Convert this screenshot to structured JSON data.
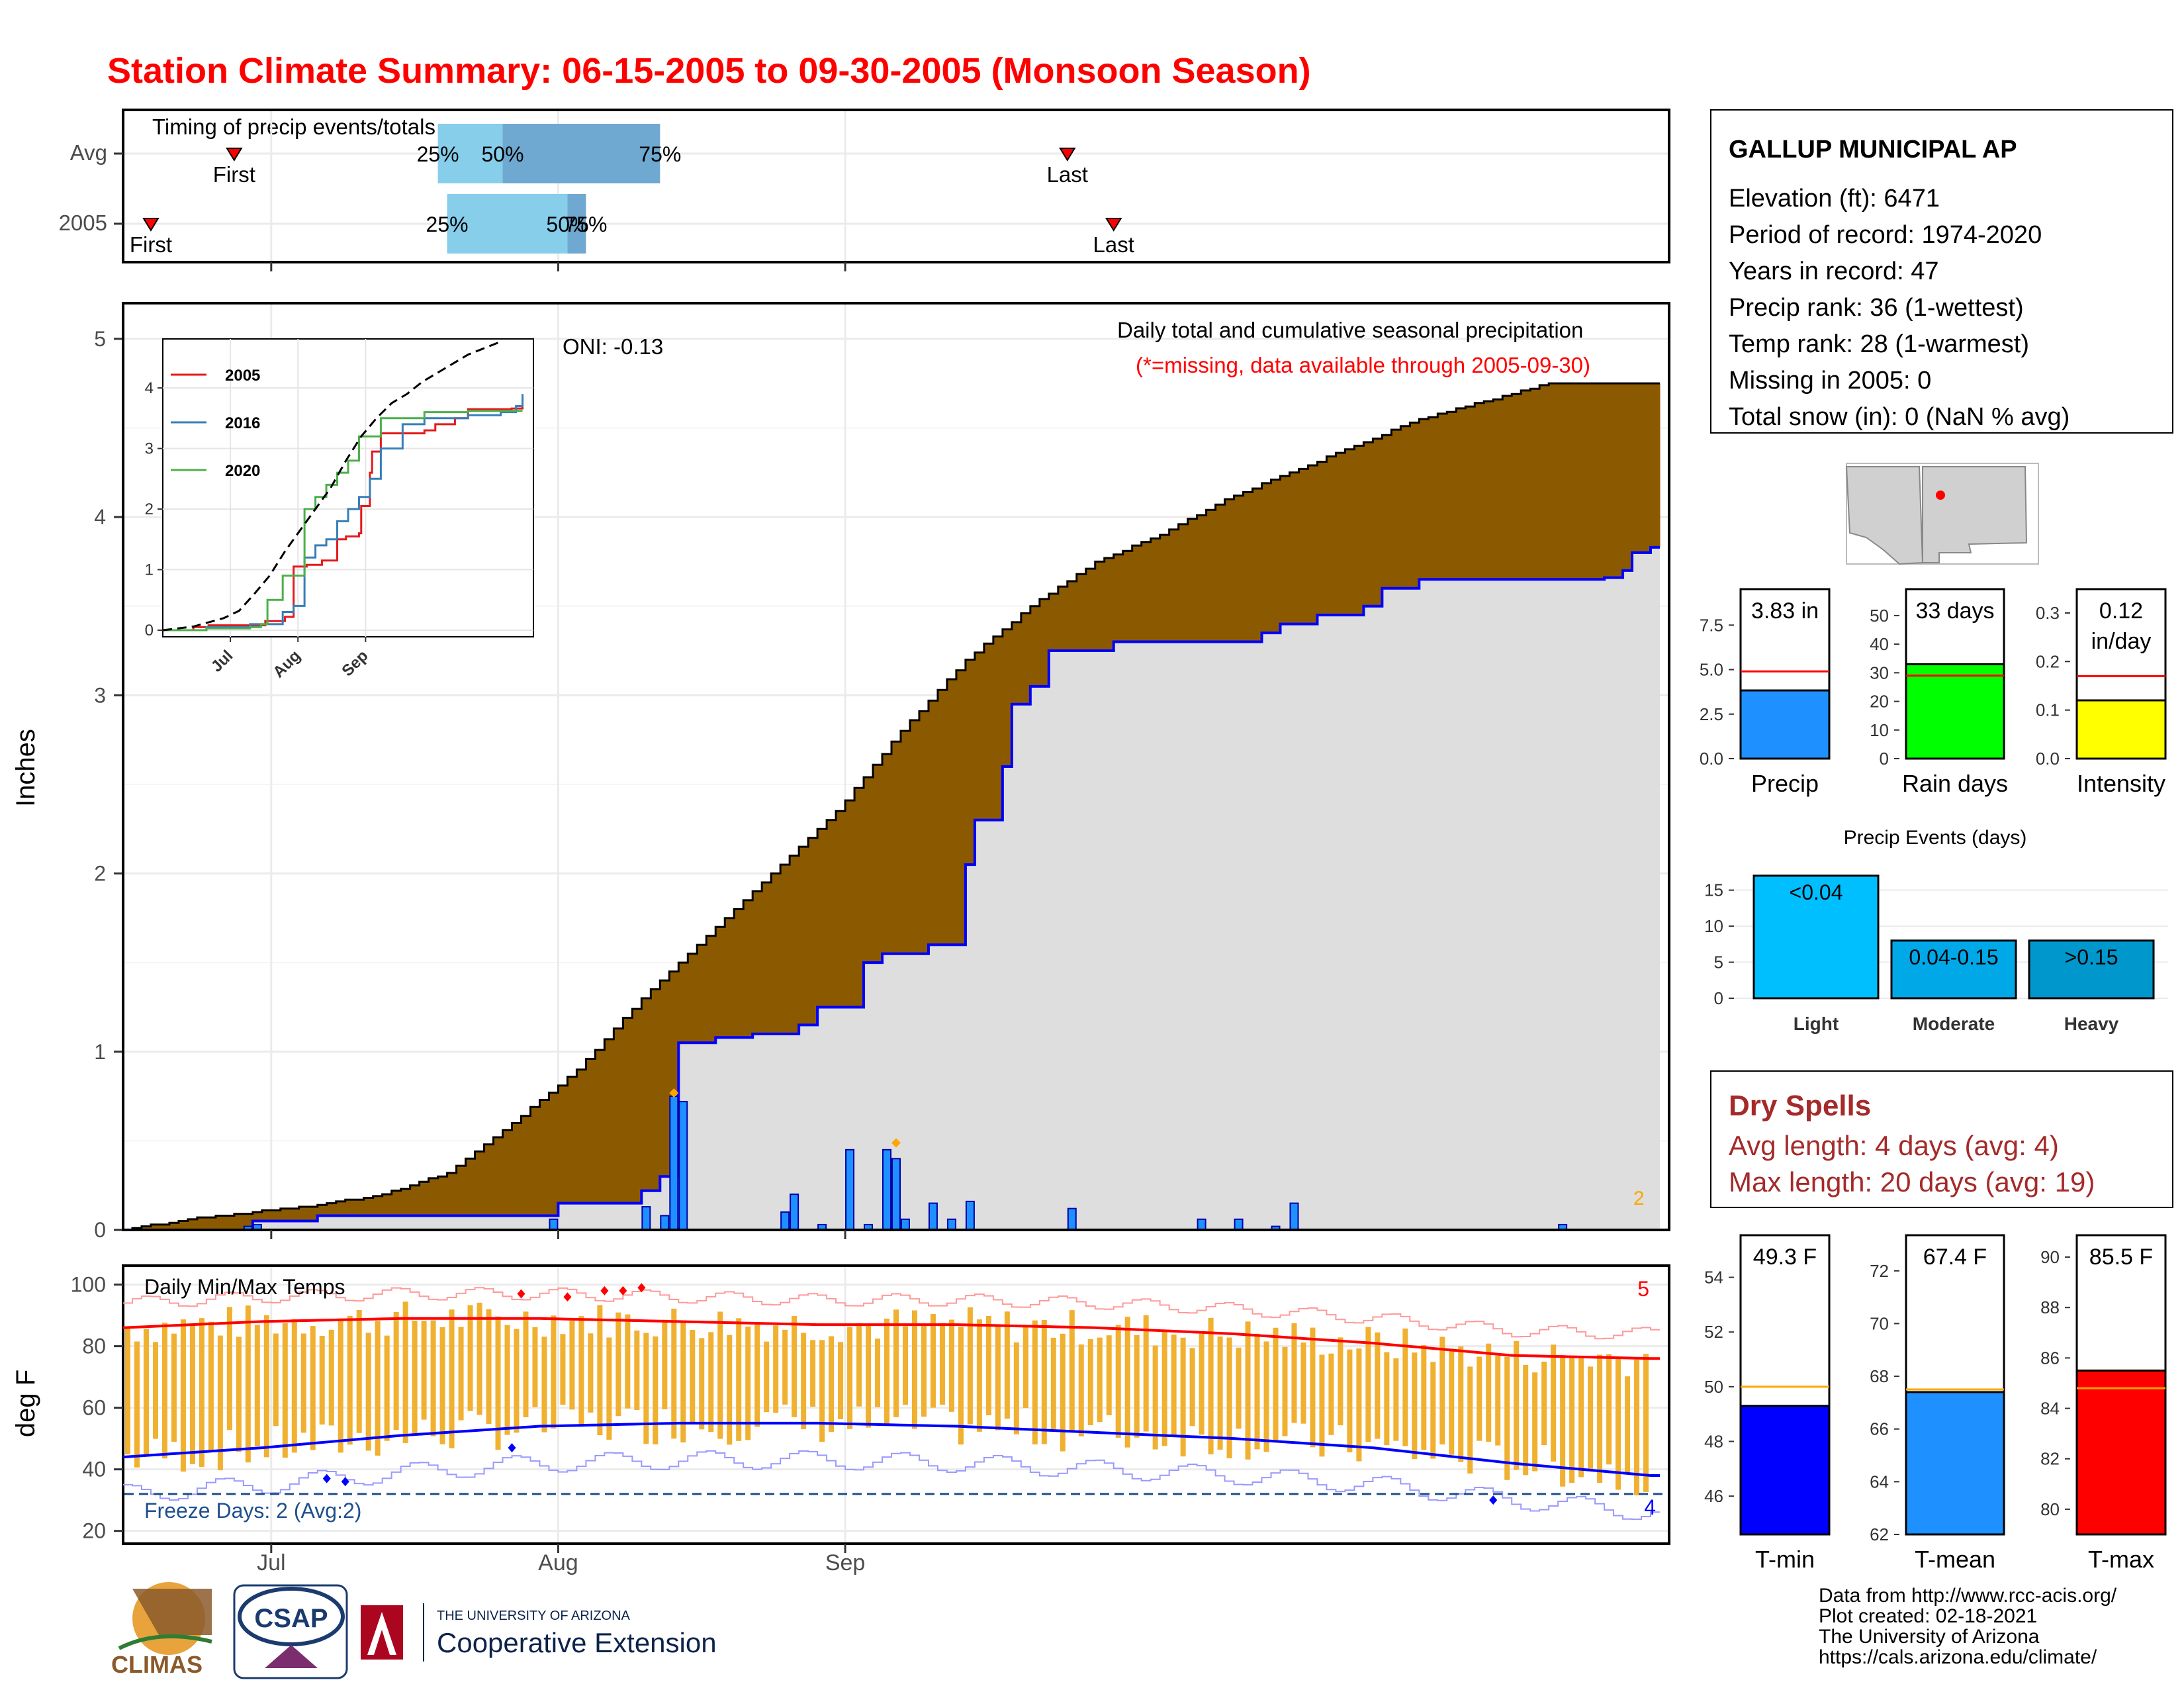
{
  "title": "Station Climate Summary: 06-15-2005 to 09-30-2005 (Monsoon Season)",
  "colors": {
    "title": "#ff0000",
    "cum_obs": "#0000ff",
    "deficit": "#8b5a00",
    "surplus": "#008000",
    "normal_fill": "#dedede",
    "daily_bar": "#1e90ff",
    "light_blue": "#87ceeb",
    "mid_blue": "#6fa8d0",
    "tmax": "#ff0000",
    "tmin": "#0000ff",
    "temp_bar": "#f0b030",
    "dry_spell": "#a52a2a",
    "freeze": "#1e4f8c"
  },
  "months": [
    "Jul",
    "Aug",
    "Sep"
  ],
  "timing": {
    "label": "Timing of precip events/totals",
    "rows": [
      "Avg",
      "2005"
    ],
    "pct_labels": [
      "25%",
      "50%",
      "75%"
    ],
    "first_label": "First",
    "last_label": "Last",
    "avg": {
      "first": "06-27",
      "p25": "07-19",
      "p50": "07-26",
      "p75": "08-12",
      "last": "09-25"
    },
    "y2005": {
      "first": "06-18",
      "p25": "07-20",
      "p50": "08-02",
      "p75": "08-04",
      "last": "09-30"
    }
  },
  "precip_panel": {
    "ylabel": "Inches",
    "yticks": [
      "0",
      "1",
      "2",
      "3",
      "4",
      "5"
    ],
    "caption": "Daily total and cumulative seasonal precipitation",
    "missing_note": "(*=missing, data available through 2005-09-30)",
    "oni": "ONI: -0.13",
    "count_label": "2"
  },
  "chart_data": [
    {
      "type": "area",
      "name": "cumulative_precip",
      "x_range": [
        "06-15",
        "09-30"
      ],
      "ylim": [
        0,
        5.2
      ],
      "normal_cum": [
        [
          0,
          0
        ],
        [
          7,
          0.06
        ],
        [
          14,
          0.1
        ],
        [
          21,
          0.14
        ],
        [
          28,
          0.2
        ],
        [
          35,
          0.32
        ],
        [
          42,
          0.6
        ],
        [
          49,
          0.9
        ],
        [
          56,
          1.3
        ],
        [
          63,
          1.65
        ],
        [
          70,
          2.0
        ],
        [
          77,
          2.35
        ],
        [
          84,
          2.8
        ],
        [
          91,
          3.2
        ],
        [
          98,
          3.5
        ],
        [
          105,
          3.75
        ],
        [
          112,
          3.9
        ],
        [
          119,
          4.1
        ],
        [
          126,
          4.25
        ],
        [
          133,
          4.4
        ],
        [
          140,
          4.55
        ],
        [
          147,
          4.65
        ],
        [
          154,
          4.75
        ]
      ],
      "observed_cum": [
        [
          0,
          0
        ],
        [
          14,
          0.05
        ],
        [
          21,
          0.08
        ],
        [
          30,
          0.08
        ],
        [
          46,
          0.08
        ],
        [
          47,
          0.15
        ],
        [
          55,
          0.15
        ],
        [
          56,
          0.22
        ],
        [
          58,
          0.3
        ],
        [
          60,
          1.05
        ],
        [
          64,
          1.08
        ],
        [
          66,
          1.08
        ],
        [
          68,
          1.1
        ],
        [
          71,
          1.1
        ],
        [
          73,
          1.15
        ],
        [
          75,
          1.25
        ],
        [
          79,
          1.25
        ],
        [
          80,
          1.5
        ],
        [
          82,
          1.55
        ],
        [
          84,
          1.55
        ],
        [
          87,
          1.6
        ],
        [
          90,
          1.6
        ],
        [
          91,
          2.05
        ],
        [
          92,
          2.3
        ],
        [
          95,
          2.6
        ],
        [
          96,
          2.95
        ],
        [
          98,
          3.05
        ],
        [
          100,
          3.25
        ],
        [
          107,
          3.3
        ],
        [
          120,
          3.3
        ],
        [
          123,
          3.35
        ],
        [
          125,
          3.4
        ],
        [
          129,
          3.45
        ],
        [
          134,
          3.5
        ],
        [
          136,
          3.6
        ],
        [
          140,
          3.65
        ],
        [
          155,
          3.65
        ],
        [
          160,
          3.66
        ],
        [
          162,
          3.7
        ],
        [
          163,
          3.8
        ],
        [
          165,
          3.83
        ]
      ],
      "daily_bars": [
        [
          13,
          0.02
        ],
        [
          14,
          0.03
        ],
        [
          46,
          0.06
        ],
        [
          56,
          0.13
        ],
        [
          58,
          0.08
        ],
        [
          59,
          0.75
        ],
        [
          60,
          0.72
        ],
        [
          71,
          0.1
        ],
        [
          72,
          0.2
        ],
        [
          75,
          0.03
        ],
        [
          78,
          0.45
        ],
        [
          80,
          0.03
        ],
        [
          82,
          0.45
        ],
        [
          83,
          0.4
        ],
        [
          84,
          0.06
        ],
        [
          87,
          0.15
        ],
        [
          89,
          0.06
        ],
        [
          91,
          0.16
        ],
        [
          102,
          0.12
        ],
        [
          116,
          0.06
        ],
        [
          120,
          0.06
        ],
        [
          124,
          0.02
        ],
        [
          126,
          0.15
        ],
        [
          155,
          0.03
        ]
      ]
    },
    {
      "type": "line",
      "name": "inset_cumulative",
      "xticks": [
        "Jul",
        "Aug",
        "Sep"
      ],
      "yticks": [
        "0",
        "1",
        "2",
        "3",
        "4"
      ],
      "ylim": [
        0,
        4.7
      ],
      "series": [
        {
          "name": "2005",
          "color": "#e41a1c",
          "values": [
            [
              0,
              0
            ],
            [
              14,
              0.05
            ],
            [
              21,
              0.08
            ],
            [
              46,
              0.08
            ],
            [
              47,
              0.15
            ],
            [
              56,
              0.22
            ],
            [
              60,
              1.05
            ],
            [
              66,
              1.08
            ],
            [
              73,
              1.15
            ],
            [
              80,
              1.5
            ],
            [
              84,
              1.55
            ],
            [
              90,
              1.6
            ],
            [
              91,
              2.05
            ],
            [
              95,
              2.6
            ],
            [
              96,
              2.95
            ],
            [
              100,
              3.25
            ],
            [
              120,
              3.3
            ],
            [
              125,
              3.4
            ],
            [
              134,
              3.5
            ],
            [
              140,
              3.65
            ],
            [
              160,
              3.66
            ],
            [
              165,
              3.83
            ]
          ]
        },
        {
          "name": "2016",
          "color": "#377eb8",
          "values": [
            [
              0,
              0
            ],
            [
              20,
              0.05
            ],
            [
              40,
              0.1
            ],
            [
              50,
              0.1
            ],
            [
              55,
              0.3
            ],
            [
              60,
              0.4
            ],
            [
              65,
              1.2
            ],
            [
              70,
              1.4
            ],
            [
              75,
              1.5
            ],
            [
              80,
              1.8
            ],
            [
              85,
              2.0
            ],
            [
              90,
              2.2
            ],
            [
              95,
              2.5
            ],
            [
              100,
              3.0
            ],
            [
              110,
              3.4
            ],
            [
              120,
              3.5
            ],
            [
              140,
              3.55
            ],
            [
              155,
              3.6
            ],
            [
              162,
              3.7
            ],
            [
              165,
              3.9
            ]
          ]
        },
        {
          "name": "2020",
          "color": "#4daf4a",
          "values": [
            [
              0,
              0
            ],
            [
              20,
              0.03
            ],
            [
              40,
              0.05
            ],
            [
              45,
              0.1
            ],
            [
              48,
              0.5
            ],
            [
              55,
              0.9
            ],
            [
              65,
              2.0
            ],
            [
              70,
              2.2
            ],
            [
              75,
              2.4
            ],
            [
              80,
              2.6
            ],
            [
              85,
              2.8
            ],
            [
              90,
              3.2
            ],
            [
              100,
              3.5
            ],
            [
              120,
              3.6
            ],
            [
              140,
              3.62
            ],
            [
              165,
              3.62
            ]
          ]
        },
        {
          "name": "normal",
          "color": "#000000",
          "values": [
            [
              0,
              0
            ],
            [
              14,
              0.06
            ],
            [
              28,
              0.2
            ],
            [
              35,
              0.32
            ],
            [
              42,
              0.6
            ],
            [
              49,
              0.9
            ],
            [
              56,
              1.3
            ],
            [
              63,
              1.65
            ],
            [
              70,
              2.0
            ],
            [
              77,
              2.35
            ],
            [
              84,
              2.8
            ],
            [
              91,
              3.2
            ],
            [
              98,
              3.5
            ],
            [
              105,
              3.75
            ],
            [
              112,
              3.9
            ],
            [
              119,
              4.1
            ],
            [
              126,
              4.25
            ],
            [
              133,
              4.4
            ],
            [
              140,
              4.55
            ],
            [
              147,
              4.65
            ],
            [
              154,
              4.75
            ]
          ]
        }
      ]
    },
    {
      "type": "line",
      "name": "daily_temps",
      "ylabel": "deg F",
      "yticks": [
        "20",
        "40",
        "60",
        "80",
        "100"
      ],
      "ylim": [
        18,
        104
      ],
      "freeze_line": 32,
      "tmax_normal": [
        [
          0,
          86
        ],
        [
          15,
          88
        ],
        [
          30,
          89
        ],
        [
          45,
          89
        ],
        [
          60,
          88
        ],
        [
          75,
          87
        ],
        [
          90,
          87
        ],
        [
          105,
          86
        ],
        [
          120,
          84
        ],
        [
          135,
          81
        ],
        [
          150,
          77
        ],
        [
          165,
          76
        ]
      ],
      "tmin_normal": [
        [
          0,
          44
        ],
        [
          15,
          47
        ],
        [
          30,
          51
        ],
        [
          45,
          54
        ],
        [
          60,
          55
        ],
        [
          75,
          55
        ],
        [
          90,
          54
        ],
        [
          105,
          52
        ],
        [
          120,
          50
        ],
        [
          135,
          47
        ],
        [
          150,
          42
        ],
        [
          165,
          38
        ]
      ]
    },
    {
      "type": "bar",
      "name": "precip_summary",
      "categories": [
        "Precip",
        "Rain days",
        "Intensity"
      ],
      "values": [
        3.83,
        33,
        0.12
      ],
      "normals": [
        4.9,
        29,
        0.17
      ],
      "labels": [
        "3.83 in",
        "33 days",
        "0.12 in/day"
      ],
      "yticks": [
        [
          "0.0",
          "2.5",
          "5.0",
          "7.5"
        ],
        [
          "0",
          "10",
          "20",
          "30",
          "40",
          "50"
        ],
        [
          "0.0",
          "0.1",
          "0.2",
          "0.3"
        ]
      ]
    },
    {
      "type": "bar",
      "name": "precip_events",
      "title": "Precip Events (days)",
      "categories": [
        "Light",
        "Moderate",
        "Heavy"
      ],
      "values": [
        17,
        8,
        8
      ],
      "labels": [
        "<0.04",
        "0.04-0.15",
        ">0.15"
      ],
      "yticks": [
        "0",
        "5",
        "10",
        "15"
      ]
    },
    {
      "type": "bar",
      "name": "temp_summary",
      "categories": [
        "T-min",
        "T-mean",
        "T-max"
      ],
      "values": [
        49.3,
        67.4,
        85.5
      ],
      "normals": [
        50.0,
        67.5,
        84.8
      ],
      "labels": [
        "49.3 F",
        "67.4 F",
        "85.5 F"
      ],
      "yticks": [
        [
          "46",
          "48",
          "50",
          "52",
          "54"
        ],
        [
          "62",
          "64",
          "66",
          "68",
          "70",
          "72"
        ],
        [
          "80",
          "82",
          "84",
          "86",
          "88",
          "90"
        ]
      ]
    }
  ],
  "temp_panel": {
    "label": "Daily Min/Max Temps",
    "freeze_label": "Freeze Days: 2 (Avg:2)",
    "max_count": "5",
    "min_count": "4"
  },
  "station": {
    "name": "GALLUP MUNICIPAL AP",
    "lines": [
      "Elevation (ft): 6471",
      "Period of record: 1974-2020",
      "Years in record: 47",
      "Precip rank: 36 (1-wettest)",
      "Temp rank: 28 (1-warmest)",
      "Missing in 2005: 0",
      "Total snow (in): 0 (NaN % avg)"
    ]
  },
  "dry_spells": {
    "title": "Dry Spells",
    "avg_line": "Avg length: 4 days (avg: 4)",
    "max_line": "Max length: 20 days (avg: 19)"
  },
  "footer": {
    "lines": [
      "Data from http://www.rcc-acis.org/",
      "Plot created: 02-18-2021",
      "The University of Arizona",
      "https://cals.arizona.edu/climate/"
    ],
    "logo_climas": "CLIMAS",
    "logo_csap": "CSAP",
    "logo_ua_small": "THE UNIVERSITY OF ARIZONA",
    "logo_ua_big": "Cooperative Extension"
  }
}
